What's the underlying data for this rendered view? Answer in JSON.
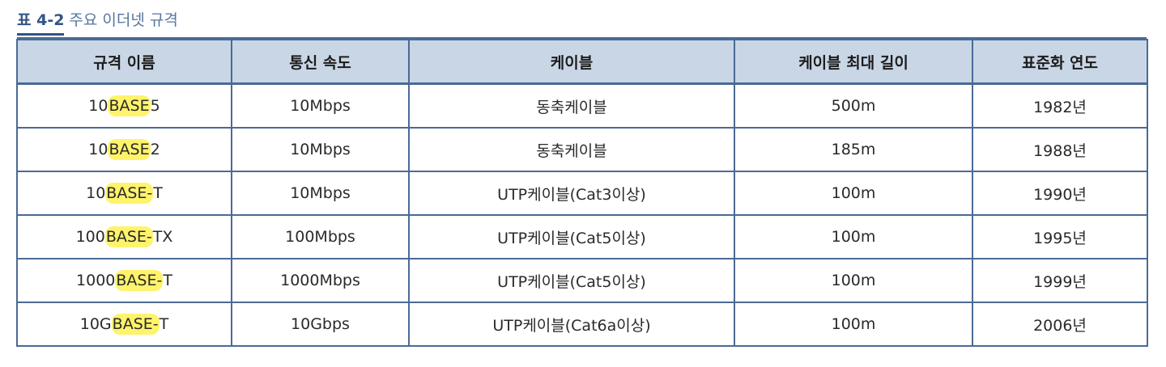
{
  "caption": {
    "label": "표 4-2",
    "title": "주요 이더넷 규격"
  },
  "table": {
    "headers": [
      "규격 이름",
      "통신 속도",
      "케이블",
      "케이블 최대 길이",
      "표준화 연도"
    ],
    "rows": [
      {
        "name_pre": "10",
        "name_hl": "BASE",
        "name_post": "5",
        "speed": "10Mbps",
        "cable": "동축케이블",
        "max_length": "500m",
        "year": "1982년"
      },
      {
        "name_pre": "10",
        "name_hl": "BASE",
        "name_post": "2",
        "speed": "10Mbps",
        "cable": "동축케이블",
        "max_length": "185m",
        "year": "1988년"
      },
      {
        "name_pre": "10",
        "name_hl": "BASE-",
        "name_post": "T",
        "speed": "10Mbps",
        "cable": "UTP케이블(Cat3이상)",
        "max_length": "100m",
        "year": "1990년"
      },
      {
        "name_pre": "100",
        "name_hl": "BASE-",
        "name_post": "TX",
        "speed": "100Mbps",
        "cable": "UTP케이블(Cat5이상)",
        "max_length": "100m",
        "year": "1995년"
      },
      {
        "name_pre": "1000",
        "name_hl": "BASE-",
        "name_post": "T",
        "speed": "1000Mbps",
        "cable": "UTP케이블(Cat5이상)",
        "max_length": "100m",
        "year": "1999년"
      },
      {
        "name_pre": "10G",
        "name_hl": "BASE-",
        "name_post": "T",
        "speed": "10Gbps",
        "cable": "UTP케이블(Cat6a이상)",
        "max_length": "100m",
        "year": "2006년"
      }
    ]
  },
  "colors": {
    "header_bg": "#c9d6e5",
    "border": "#4a6a95",
    "caption": "#2f5487",
    "highlight": "#fff36b"
  }
}
